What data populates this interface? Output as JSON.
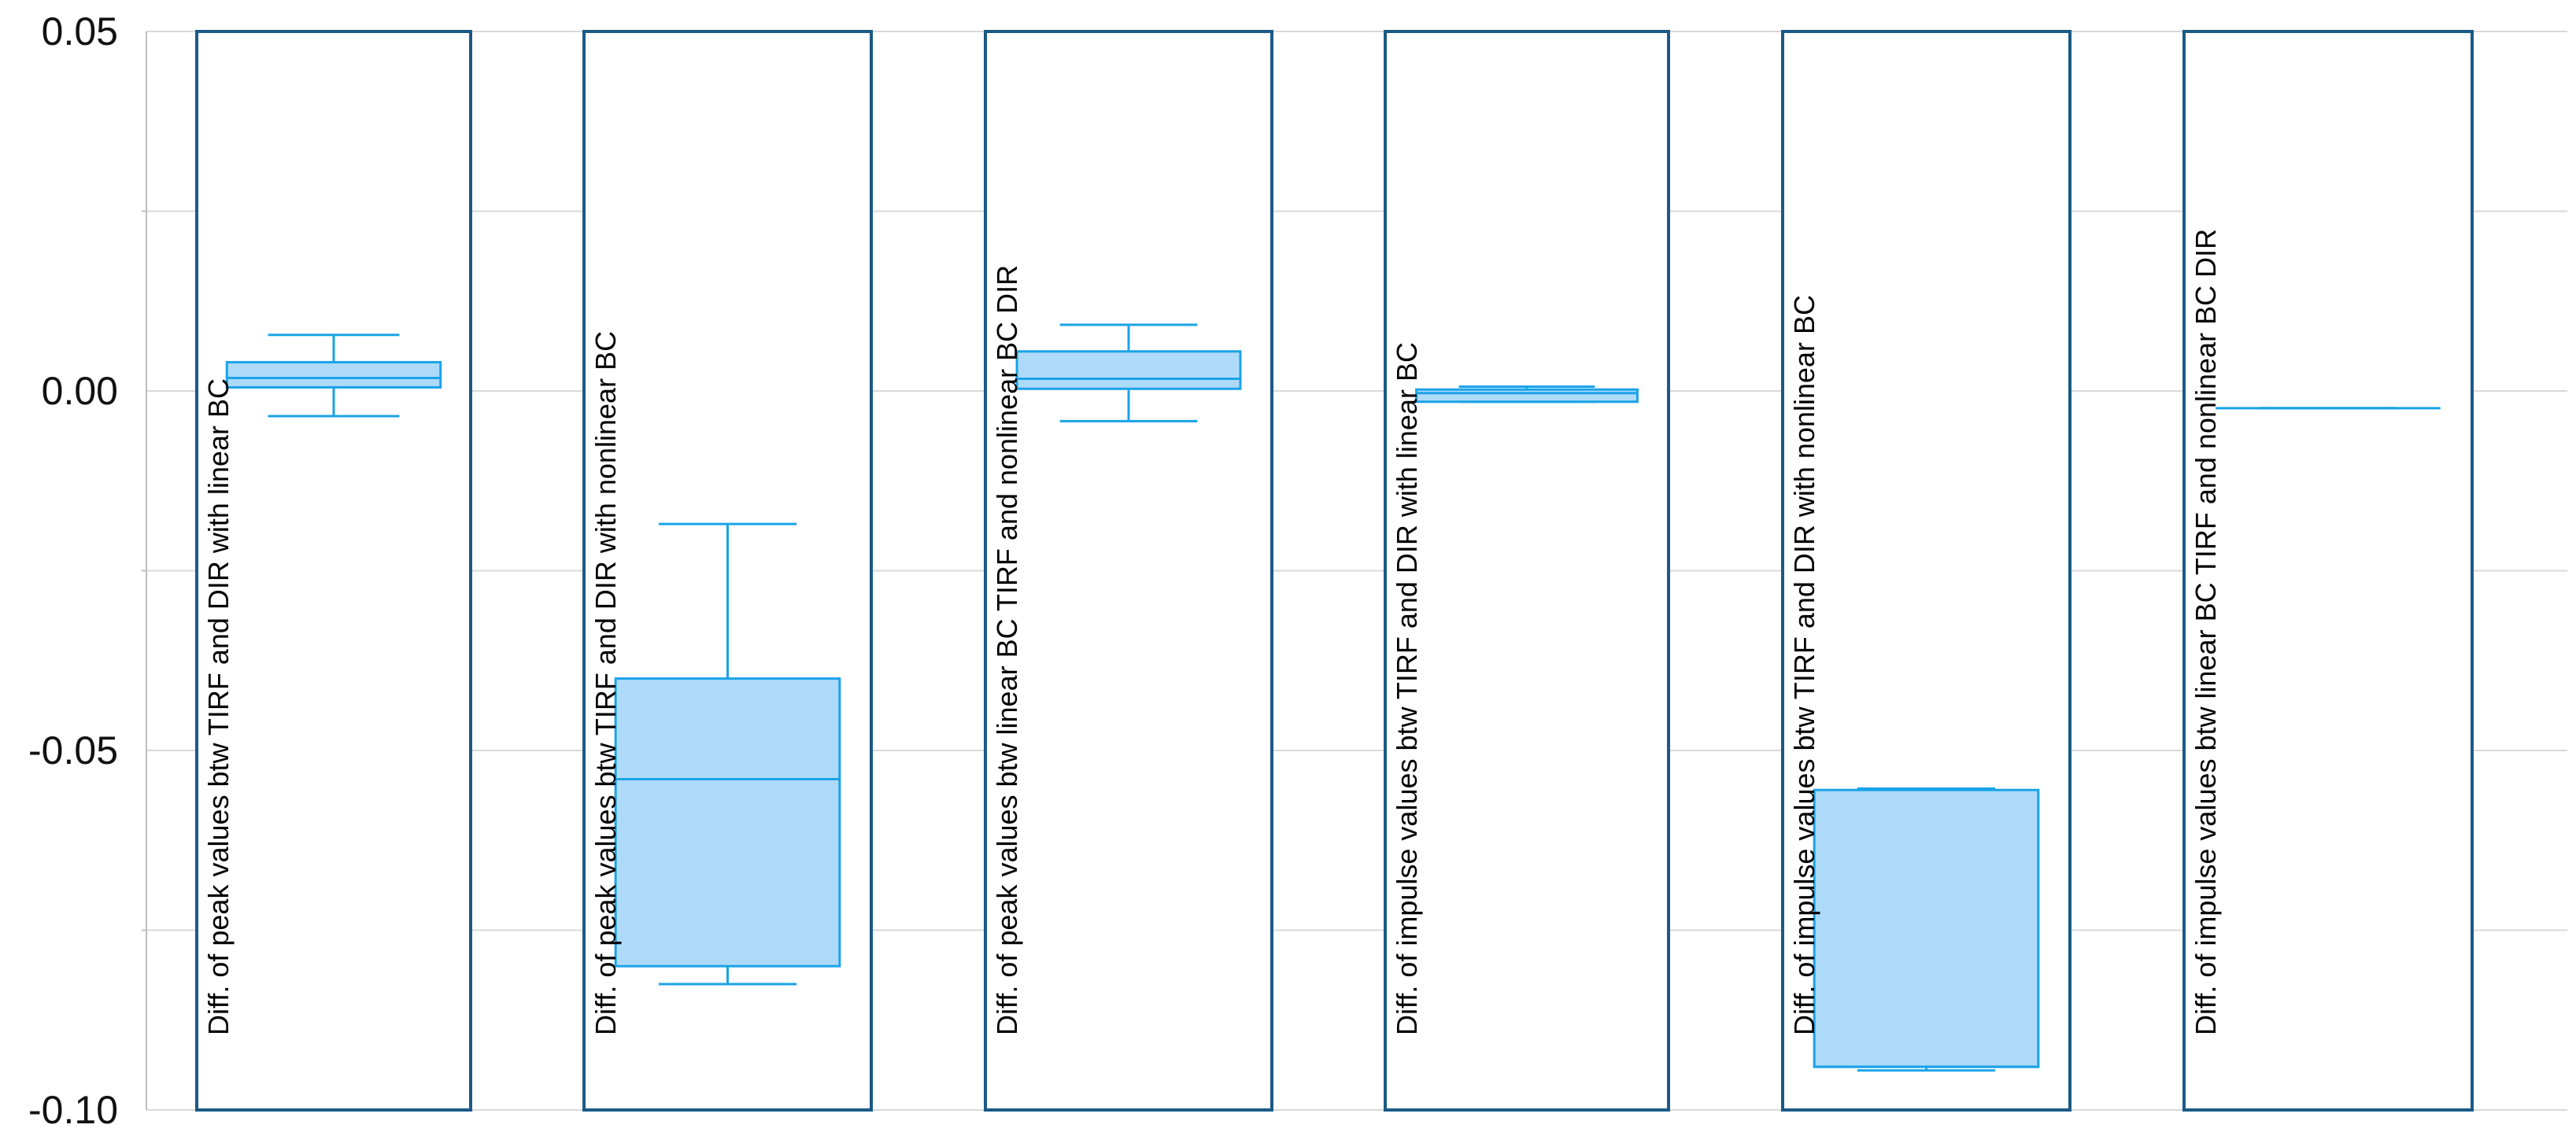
{
  "chart_data": {
    "type": "box",
    "ylim": [
      -0.1,
      0.05
    ],
    "yticks": [
      0.05,
      0.0,
      -0.05,
      -0.1
    ],
    "ytick_labels": [
      "0.05",
      "0.00",
      "-0.05",
      "-0.10"
    ],
    "minor_yticks": [
      0.025,
      -0.025,
      -0.075
    ],
    "grid": true,
    "colors": {
      "box_fill": "#aedaf9",
      "box_stroke": "#1aa3e8",
      "panel_border": "#1b5a86"
    },
    "boxes": [
      {
        "label": "Diff. of peak values btw TIRF and DIR with linear BC",
        "whisker_low": -0.0035,
        "q1": 0.0005,
        "median": 0.0018,
        "q3": 0.004,
        "whisker_high": 0.0078
      },
      {
        "label": "Diff. of peak values btw TIRF and DIR with nonlinear BC",
        "whisker_low": -0.0825,
        "q1": -0.08,
        "median": -0.054,
        "q3": -0.04,
        "whisker_high": -0.0185
      },
      {
        "label": "Diff. of peak values btw linear BC TIRF and nonlinear BC DIR",
        "whisker_low": -0.0042,
        "q1": 0.0003,
        "median": 0.0017,
        "q3": 0.0055,
        "whisker_high": 0.0092
      },
      {
        "label": "Diff. of impulse values btw TIRF and DIR with linear BC",
        "whisker_low": -0.0015,
        "q1": -0.0015,
        "median": -0.0003,
        "q3": 0.0002,
        "whisker_high": 0.0006
      },
      {
        "label": "Diff. of impulse values btw TIRF and DIR with nonlinear BC",
        "whisker_low": -0.0945,
        "q1": -0.094,
        "median": -0.094,
        "q3": -0.0555,
        "whisker_high": -0.0553
      },
      {
        "label": "Diff. of impulse values btw linear BC TIRF and nonlinear BC DIR",
        "whisker_low": -0.0024,
        "q1": -0.0024,
        "median": -0.0024,
        "q3": -0.0024,
        "whisker_high": -0.0024
      }
    ]
  }
}
